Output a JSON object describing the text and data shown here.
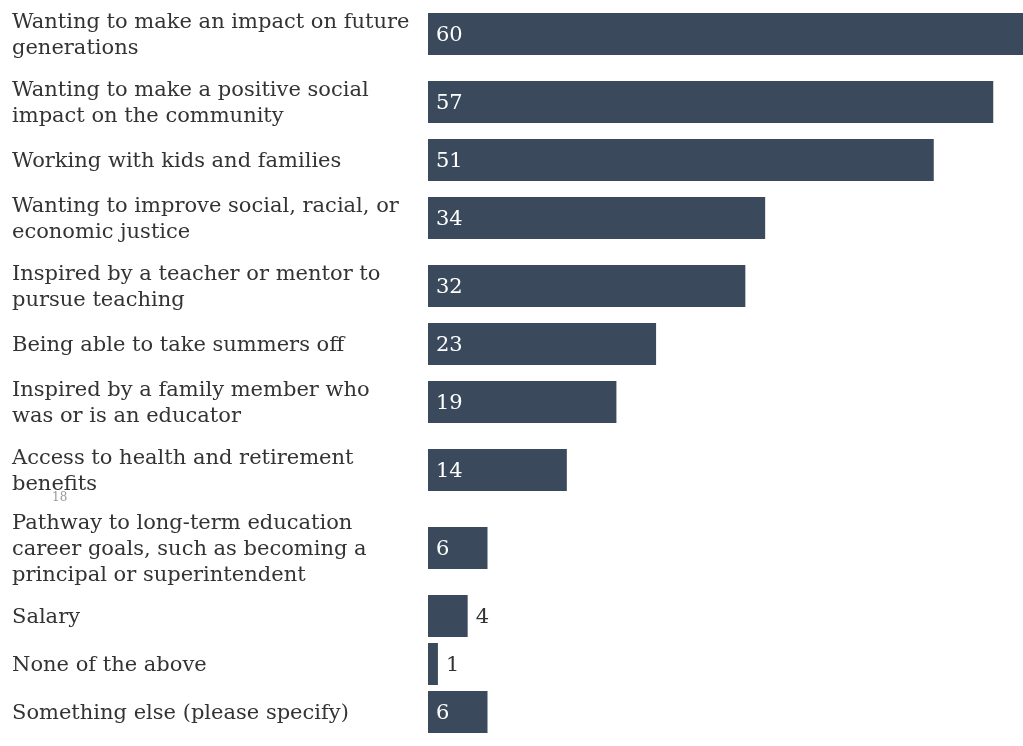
{
  "chart_data": {
    "type": "bar",
    "orientation": "horizontal",
    "categories": [
      "Wanting to make an impact on future generations",
      "Wanting to make a positive social impact on the community",
      "Working with kids and families",
      "Wanting to improve social, racial, or economic justice",
      "Inspired by a teacher or mentor to pursue teaching",
      "Being able to take summers off",
      "Inspired by a family member who was or is an educator",
      "Access to health and retirement benefits",
      "Pathway to long-term education career goals, such as becoming a principal or superintendent",
      "Salary",
      "None of the above",
      "Something else (please specify)"
    ],
    "values": [
      60,
      57,
      51,
      34,
      32,
      23,
      19,
      14,
      6,
      4,
      1,
      6
    ],
    "color": "#3a4a5c",
    "data_labels": true,
    "annotations": [
      "18"
    ]
  }
}
